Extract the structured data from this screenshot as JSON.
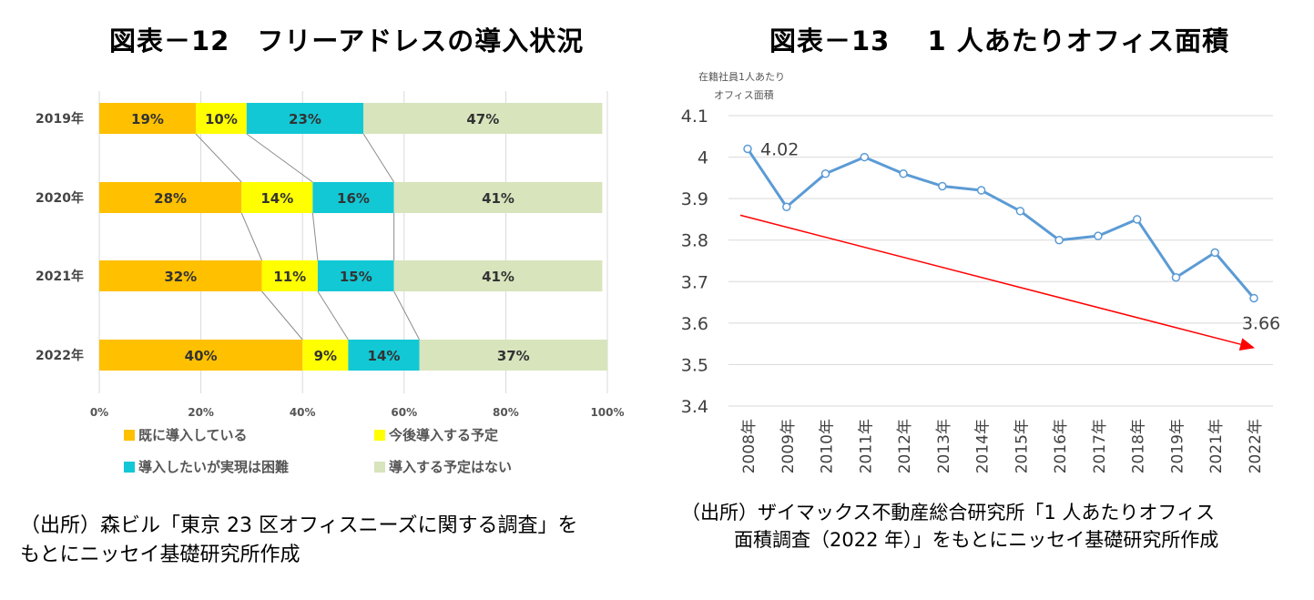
{
  "titles": {
    "left": "図表－12　フリーアドレスの導入状況",
    "right": "図表－13　 1 人あたりオフィス面積"
  },
  "sources": {
    "left_line1": "（出所）森ビル「東京 23 区オフィスニーズに関する調査」を",
    "left_line2": "もとにニッセイ基礎研究所作成",
    "right_line1": "（出所）ザイマックス不動産総合研究所「1 人あたりオフィス",
    "right_line2": "面積調査（2022 年）」をもとにニッセイ基礎研究所作成"
  },
  "chart_data": [
    {
      "type": "bar",
      "orientation": "horizontal",
      "stacked": true,
      "title": "図表－12　フリーアドレスの導入状況",
      "categories": [
        "2019年",
        "2020年",
        "2021年",
        "2022年"
      ],
      "series": [
        {
          "name": "既に導入している",
          "color": "#FFC000",
          "values": [
            19,
            28,
            32,
            40
          ]
        },
        {
          "name": "今後導入する予定",
          "color": "#FFFF00",
          "values": [
            10,
            14,
            11,
            9
          ]
        },
        {
          "name": "導入したいが実現は困難",
          "color": "#12C8D5",
          "values": [
            23,
            16,
            15,
            14
          ]
        },
        {
          "name": "導入する予定はない",
          "color": "#D8E4BC",
          "values": [
            47,
            41,
            41,
            37
          ]
        }
      ],
      "value_suffix": "%",
      "xlim": [
        0,
        100
      ],
      "xticks": [
        "0%",
        "20%",
        "40%",
        "60%",
        "80%",
        "100%"
      ],
      "connector_lines": true,
      "legend_position": "bottom"
    },
    {
      "type": "line",
      "title": "図表－13　 1 人あたりオフィス面積",
      "ylabel_line1": "在籍社員1人あたり",
      "ylabel_line2": "オフィス面積",
      "x": [
        "2008年",
        "2009年",
        "2010年",
        "2011年",
        "2012年",
        "2013年",
        "2014年",
        "2015年",
        "2016年",
        "2017年",
        "2018年",
        "2019年",
        "2021年",
        "2022年"
      ],
      "values": [
        4.02,
        3.88,
        3.96,
        4.0,
        3.96,
        3.93,
        3.92,
        3.87,
        3.8,
        3.81,
        3.85,
        3.71,
        3.77,
        3.66
      ],
      "line_color": "#5B9BD5",
      "ylim": [
        3.4,
        4.1
      ],
      "yticks": [
        "3.4",
        "3.5",
        "3.6",
        "3.7",
        "3.8",
        "3.9",
        "4",
        "4.1"
      ],
      "labels": [
        {
          "index": 0,
          "text": "4.02"
        },
        {
          "index": 13,
          "text": "3.66"
        }
      ],
      "trend_arrow": {
        "color": "#FF0000",
        "from_value": 3.86,
        "to_value": 3.54
      },
      "grid": true
    }
  ]
}
